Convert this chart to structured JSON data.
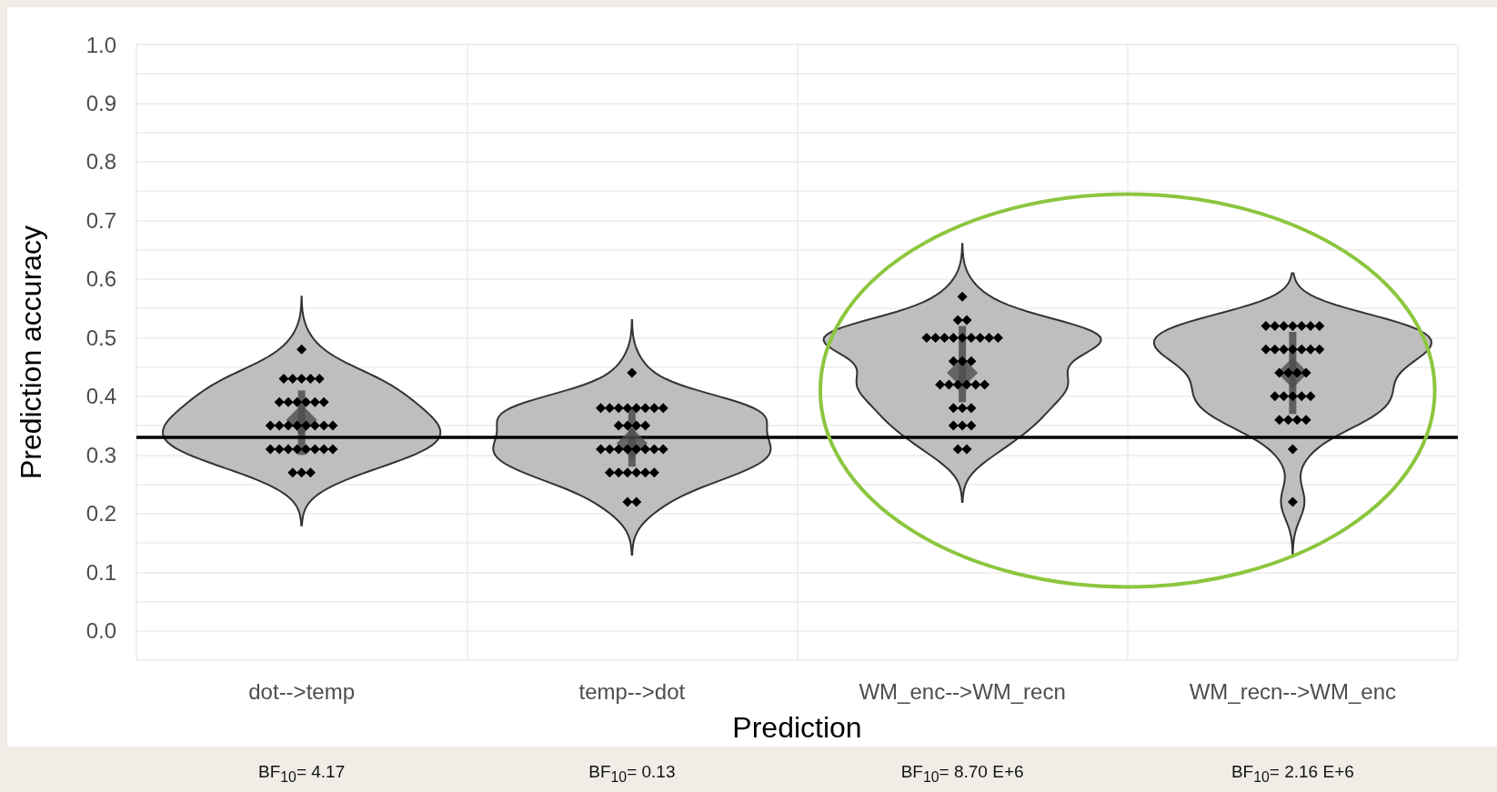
{
  "chart_data": {
    "type": "scatter",
    "xlabel": "Prediction",
    "ylabel": "Prediction accuracy",
    "categories": [
      "dot-->temp",
      "temp-->dot",
      "WM_enc-->WM_recn",
      "WM_recn-->WM_enc"
    ],
    "ylim": [
      -0.05,
      1.0
    ],
    "yticks": [
      {
        "value": -0.05,
        "label": null
      },
      {
        "value": 0,
        "label": "0.0"
      },
      {
        "value": 0.05,
        "label": null
      },
      {
        "value": 0.1,
        "label": "0.1"
      },
      {
        "value": 0.15,
        "label": null
      },
      {
        "value": 0.2,
        "label": "0.2"
      },
      {
        "value": 0.25,
        "label": null
      },
      {
        "value": 0.3,
        "label": "0.3"
      },
      {
        "value": 0.35,
        "label": null
      },
      {
        "value": 0.4,
        "label": "0.4"
      },
      {
        "value": 0.45,
        "label": null
      },
      {
        "value": 0.5,
        "label": "0.5"
      },
      {
        "value": 0.55,
        "label": null
      },
      {
        "value": 0.6,
        "label": "0.6"
      },
      {
        "value": 0.65,
        "label": null
      },
      {
        "value": 0.7,
        "label": "0.7"
      },
      {
        "value": 0.75,
        "label": null
      },
      {
        "value": 0.8,
        "label": "0.8"
      },
      {
        "value": 0.85,
        "label": null
      },
      {
        "value": 0.9,
        "label": "0.9"
      },
      {
        "value": 0.95,
        "label": null
      },
      {
        "value": 1.0,
        "label": "1.0"
      }
    ],
    "grid": true,
    "marker": "diamond",
    "series": [
      {
        "color": "#000000",
        "x": [
          "dot-->temp",
          "dot-->temp",
          "dot-->temp",
          "dot-->temp",
          "dot-->temp",
          "dot-->temp",
          "dot-->temp",
          "dot-->temp",
          "dot-->temp",
          "dot-->temp",
          "dot-->temp",
          "dot-->temp",
          "dot-->temp",
          "dot-->temp",
          "dot-->temp",
          "dot-->temp",
          "dot-->temp",
          "dot-->temp",
          "dot-->temp",
          "dot-->temp",
          "dot-->temp",
          "dot-->temp",
          "dot-->temp",
          "dot-->temp",
          "dot-->temp",
          "dot-->temp",
          "dot-->temp",
          "dot-->temp",
          "dot-->temp",
          "dot-->temp",
          "dot-->temp",
          "temp-->dot",
          "temp-->dot",
          "temp-->dot",
          "temp-->dot",
          "temp-->dot",
          "temp-->dot",
          "temp-->dot",
          "temp-->dot",
          "temp-->dot",
          "temp-->dot",
          "temp-->dot",
          "temp-->dot",
          "temp-->dot",
          "temp-->dot",
          "temp-->dot",
          "temp-->dot",
          "temp-->dot",
          "temp-->dot",
          "temp-->dot",
          "temp-->dot",
          "temp-->dot",
          "temp-->dot",
          "temp-->dot",
          "temp-->dot",
          "temp-->dot",
          "temp-->dot",
          "temp-->dot",
          "temp-->dot",
          "temp-->dot",
          "WM_enc-->WM_recn",
          "WM_enc-->WM_recn",
          "WM_enc-->WM_recn",
          "WM_enc-->WM_recn",
          "WM_enc-->WM_recn",
          "WM_enc-->WM_recn",
          "WM_enc-->WM_recn",
          "WM_enc-->WM_recn",
          "WM_enc-->WM_recn",
          "WM_enc-->WM_recn",
          "WM_enc-->WM_recn",
          "WM_enc-->WM_recn",
          "WM_enc-->WM_recn",
          "WM_enc-->WM_recn",
          "WM_enc-->WM_recn",
          "WM_enc-->WM_recn",
          "WM_enc-->WM_recn",
          "WM_enc-->WM_recn",
          "WM_enc-->WM_recn",
          "WM_enc-->WM_recn",
          "WM_enc-->WM_recn",
          "WM_enc-->WM_recn",
          "WM_enc-->WM_recn",
          "WM_enc-->WM_recn",
          "WM_enc-->WM_recn",
          "WM_enc-->WM_recn",
          "WM_enc-->WM_recn",
          "WM_enc-->WM_recn",
          "WM_enc-->WM_recn",
          "WM_recn-->WM_enc",
          "WM_recn-->WM_enc",
          "WM_recn-->WM_enc",
          "WM_recn-->WM_enc",
          "WM_recn-->WM_enc",
          "WM_recn-->WM_enc",
          "WM_recn-->WM_enc",
          "WM_recn-->WM_enc",
          "WM_recn-->WM_enc",
          "WM_recn-->WM_enc",
          "WM_recn-->WM_enc",
          "WM_recn-->WM_enc",
          "WM_recn-->WM_enc",
          "WM_recn-->WM_enc",
          "WM_recn-->WM_enc",
          "WM_recn-->WM_enc",
          "WM_recn-->WM_enc",
          "WM_recn-->WM_enc",
          "WM_recn-->WM_enc",
          "WM_recn-->WM_enc",
          "WM_recn-->WM_enc",
          "WM_recn-->WM_enc",
          "WM_recn-->WM_enc",
          "WM_recn-->WM_enc",
          "WM_recn-->WM_enc",
          "WM_recn-->WM_enc",
          "WM_recn-->WM_enc",
          "WM_recn-->WM_enc",
          "WM_recn-->WM_enc"
        ],
        "values": [
          0.48,
          0.43,
          0.43,
          0.43,
          0.43,
          0.43,
          0.39,
          0.39,
          0.39,
          0.39,
          0.39,
          0.39,
          0.35,
          0.35,
          0.35,
          0.35,
          0.35,
          0.35,
          0.35,
          0.35,
          0.31,
          0.31,
          0.31,
          0.31,
          0.31,
          0.31,
          0.31,
          0.31,
          0.27,
          0.27,
          0.27,
          0.44,
          0.38,
          0.38,
          0.38,
          0.38,
          0.38,
          0.38,
          0.38,
          0.38,
          0.35,
          0.35,
          0.35,
          0.35,
          0.31,
          0.31,
          0.31,
          0.31,
          0.31,
          0.31,
          0.31,
          0.31,
          0.27,
          0.27,
          0.27,
          0.27,
          0.27,
          0.27,
          0.22,
          0.22,
          0.57,
          0.53,
          0.53,
          0.5,
          0.5,
          0.5,
          0.5,
          0.5,
          0.5,
          0.5,
          0.5,
          0.5,
          0.46,
          0.46,
          0.46,
          0.42,
          0.42,
          0.42,
          0.42,
          0.42,
          0.42,
          0.38,
          0.38,
          0.38,
          0.35,
          0.35,
          0.35,
          0.31,
          0.31,
          0.52,
          0.52,
          0.52,
          0.52,
          0.52,
          0.52,
          0.52,
          0.48,
          0.48,
          0.48,
          0.48,
          0.48,
          0.48,
          0.48,
          0.44,
          0.44,
          0.44,
          0.44,
          0.4,
          0.4,
          0.4,
          0.4,
          0.4,
          0.36,
          0.36,
          0.36,
          0.36,
          0.31,
          0.22
        ]
      },
      {
        "color": "#4d4d4d",
        "x": [
          "dot-->temp",
          "temp-->dot",
          "WM_enc-->WM_recn",
          "WM_recn-->WM_enc"
        ],
        "values": [
          0.36,
          0.32,
          0.44,
          0.44
        ],
        "errors": [
          [
            0.3,
            0.41
          ],
          [
            0.28,
            0.38
          ],
          [
            0.39,
            0.52
          ],
          [
            0.37,
            0.51
          ]
        ]
      }
    ],
    "ref_lines": [
      {
        "axis": "y",
        "value": 0.33,
        "color": "#000000"
      }
    ],
    "annotations": [
      "BF$_{10}$= 4.17",
      "BF$_{10}$= 0.13",
      "BF$_{10}$= 8.70 E+6",
      "BF$_{10}$= 2.16 E+6"
    ]
  }
}
